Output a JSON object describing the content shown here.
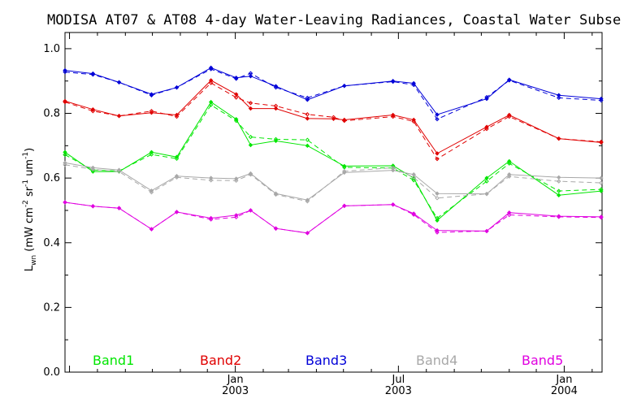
{
  "chart_data": {
    "type": "line",
    "title": "MODISA AT07 & AT08 4-day Water-Leaving Radiances, Coastal Water Subse",
    "ylabel_main": "L",
    "ylabel_sub": "wn",
    "ylabel_units": "(mW cm",
    "ylabel_units_sup1": "-2",
    "ylabel_units_mid": " sr",
    "ylabel_units_sup2": "-1",
    "ylabel_units_end": " um",
    "ylabel_units_sup3": "-1",
    "ylabel_close": ")",
    "xlabel": "",
    "ylim": [
      0.0,
      1.05
    ],
    "xlim": [
      "2002-06-26",
      "2004-02-12"
    ],
    "yticks": [
      "0.0",
      "0.2",
      "0.4",
      "0.6",
      "0.8",
      "1.0"
    ],
    "xticks": [
      {
        "date": "2003-01-01",
        "month": "Jan",
        "year": "2003"
      },
      {
        "date": "2003-07-01",
        "month": "Jul",
        "year": "2003"
      },
      {
        "date": "2004-01-01",
        "month": "Jan",
        "year": "2004"
      }
    ],
    "grid": false,
    "legend_position": "bottom",
    "x": [
      "2002-06-26",
      "2002-07-27",
      "2002-08-25",
      "2002-09-30",
      "2002-10-28",
      "2002-12-05",
      "2003-01-02",
      "2003-01-18",
      "2003-02-15",
      "2003-03-22",
      "2003-05-02",
      "2003-06-25",
      "2003-07-18",
      "2003-08-13",
      "2003-10-07",
      "2003-11-01",
      "2003-12-26",
      "2004-02-11"
    ],
    "series": [
      {
        "name": "Band1",
        "color": "#00e600",
        "solid": [
          0.68,
          0.62,
          0.62,
          0.68,
          0.665,
          0.835,
          0.782,
          0.702,
          0.715,
          0.7,
          0.637,
          0.638,
          0.6,
          0.469,
          0.6,
          0.652,
          0.547,
          0.56
        ],
        "dashed": [
          0.672,
          0.625,
          0.622,
          0.673,
          0.66,
          0.826,
          0.777,
          0.727,
          0.72,
          0.718,
          0.633,
          0.631,
          0.593,
          0.476,
          0.59,
          0.645,
          0.56,
          0.565
        ]
      },
      {
        "name": "Band2",
        "color": "#e00000",
        "solid": [
          0.838,
          0.812,
          0.792,
          0.802,
          0.795,
          0.902,
          0.859,
          0.815,
          0.815,
          0.784,
          0.78,
          0.795,
          0.78,
          0.676,
          0.758,
          0.795,
          0.722,
          0.71
        ],
        "dashed": [
          0.835,
          0.807,
          0.792,
          0.807,
          0.79,
          0.894,
          0.849,
          0.832,
          0.823,
          0.797,
          0.777,
          0.79,
          0.775,
          0.659,
          0.752,
          0.79,
          0.722,
          0.712
        ],
        "extra_x": [
          "2003-04-20"
        ],
        "extra_solid": [
          0.783
        ],
        "extra_dashed": [
          0.788
        ]
      },
      {
        "name": "Band3",
        "color": "#0000d8",
        "solid": [
          0.933,
          0.923,
          0.896,
          0.859,
          0.88,
          0.941,
          0.91,
          0.915,
          0.884,
          0.842,
          0.885,
          0.9,
          0.893,
          0.796,
          0.845,
          0.904,
          0.856,
          0.845
        ],
        "dashed": [
          0.928,
          0.92,
          0.896,
          0.856,
          0.88,
          0.937,
          0.907,
          0.924,
          0.88,
          0.848,
          0.885,
          0.898,
          0.888,
          0.782,
          0.85,
          0.902,
          0.848,
          0.84
        ]
      },
      {
        "name": "Band4",
        "color": "#a8a8a8",
        "solid": [
          0.647,
          0.632,
          0.625,
          0.561,
          0.606,
          0.6,
          0.598,
          0.614,
          0.552,
          0.532,
          0.617,
          0.624,
          0.611,
          0.552,
          0.551,
          0.611,
          0.602,
          0.6
        ],
        "dashed": [
          0.641,
          0.627,
          0.62,
          0.556,
          0.602,
          0.593,
          0.592,
          0.611,
          0.549,
          0.528,
          0.621,
          0.632,
          0.602,
          0.538,
          0.551,
          0.605,
          0.59,
          0.585
        ]
      },
      {
        "name": "Band5",
        "color": "#e000e0",
        "solid": [
          0.525,
          0.513,
          0.507,
          0.442,
          0.495,
          0.476,
          0.485,
          0.5,
          0.444,
          0.43,
          0.514,
          0.518,
          0.49,
          0.438,
          0.436,
          0.493,
          0.482,
          0.48
        ],
        "dashed": [
          0.525,
          0.513,
          0.507,
          0.442,
          0.495,
          0.472,
          0.479,
          0.5,
          0.444,
          0.43,
          0.514,
          0.518,
          0.487,
          0.432,
          0.436,
          0.486,
          0.48,
          0.478
        ]
      }
    ]
  }
}
